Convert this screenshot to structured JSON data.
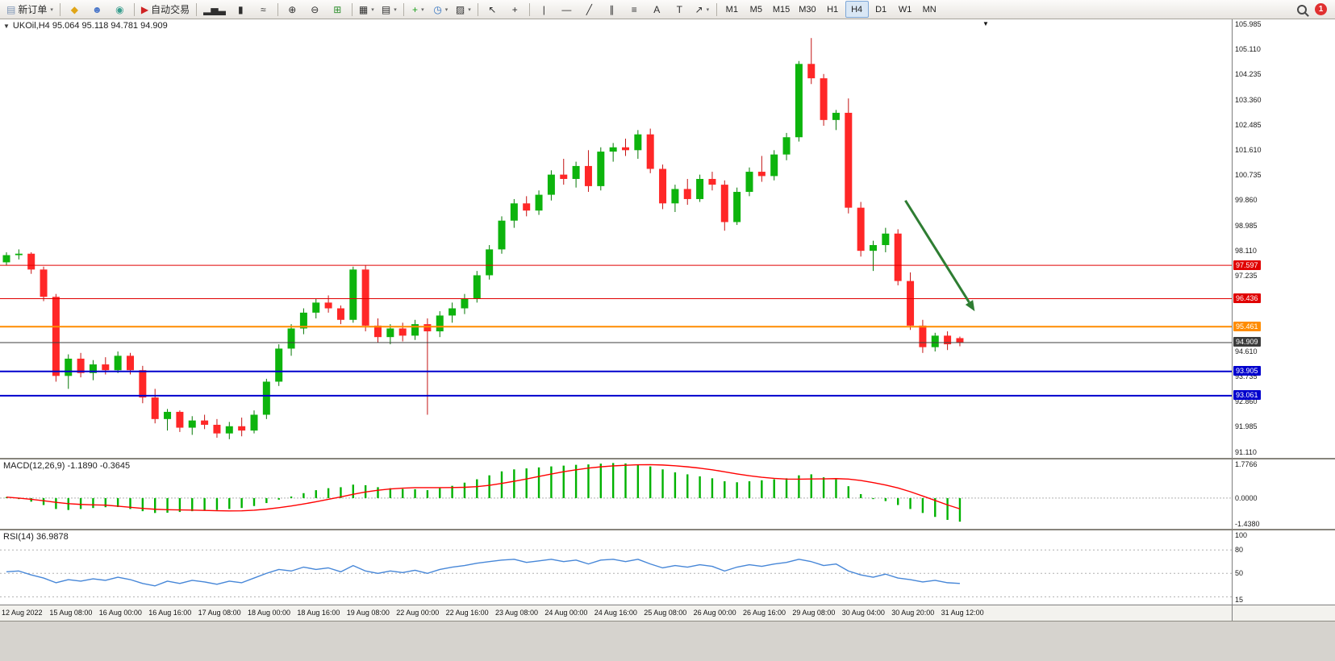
{
  "toolbar": {
    "items": [
      {
        "t": "btn",
        "name": "new-order-button",
        "icon": "new-order",
        "glyph": "▤",
        "glyph_color": "#7c93b5",
        "label": "新订单",
        "dropdown": true
      },
      {
        "t": "sep"
      },
      {
        "t": "btn",
        "name": "mql-community-button",
        "icon": "diamond",
        "glyph": "◆",
        "glyph_color": "#e0a517"
      },
      {
        "t": "btn",
        "name": "profile-button",
        "icon": "person",
        "glyph": "☻",
        "glyph_color": "#4a76c9"
      },
      {
        "t": "btn",
        "name": "market-watch-button",
        "icon": "globe",
        "glyph": "◉",
        "glyph_color": "#3a9e8f"
      },
      {
        "t": "sep"
      },
      {
        "t": "btn",
        "name": "auto-trading-button",
        "icon": "play",
        "glyph": "▶",
        "glyph_color": "#cf2323",
        "label": "自动交易"
      },
      {
        "t": "sep"
      },
      {
        "t": "btn",
        "name": "bar-chart-type-button",
        "icon": "ohlc-bars",
        "glyph": "▂▅▃"
      },
      {
        "t": "btn",
        "name": "candlestick-type-button",
        "icon": "candlestick",
        "glyph": "▮"
      },
      {
        "t": "btn",
        "name": "line-chart-type-button",
        "icon": "line-wave",
        "glyph": "≈"
      },
      {
        "t": "sep"
      },
      {
        "t": "btn",
        "name": "zoom-in-button",
        "icon": "zoom-in",
        "glyph": "⊕"
      },
      {
        "t": "btn",
        "name": "zoom-out-button",
        "icon": "zoom-out",
        "glyph": "⊖"
      },
      {
        "t": "btn",
        "name": "tile-windows-button",
        "icon": "tile-grid",
        "glyph": "⊞",
        "glyph_color": "#2d8f2d"
      },
      {
        "t": "sep"
      },
      {
        "t": "btn",
        "name": "arrange-windows-button",
        "icon": "arrange-grid",
        "glyph": "▦",
        "dropdown": true
      },
      {
        "t": "btn",
        "name": "profiles-list-button",
        "icon": "layout",
        "glyph": "▤",
        "dropdown": true
      },
      {
        "t": "sep"
      },
      {
        "t": "btn",
        "name": "add-indicator-button",
        "icon": "plus",
        "glyph": "+",
        "glyph_color": "#1da11d",
        "dropdown": true
      },
      {
        "t": "btn",
        "name": "periods-button",
        "icon": "clock",
        "glyph": "◷",
        "glyph_color": "#2d6fc0",
        "dropdown": true
      },
      {
        "t": "btn",
        "name": "templates-button",
        "icon": "template",
        "glyph": "▨",
        "dropdown": true
      },
      {
        "t": "sep"
      },
      {
        "t": "btn",
        "name": "cursor-button",
        "icon": "pointer-arrow",
        "glyph": "↖"
      },
      {
        "t": "btn",
        "name": "crosshair-button",
        "icon": "crosshair",
        "glyph": "+"
      },
      {
        "t": "sep"
      },
      {
        "t": "btn",
        "name": "vertical-line-button",
        "icon": "vertical-line",
        "glyph": "|"
      },
      {
        "t": "btn",
        "name": "horizontal-line-button",
        "icon": "horizontal-line",
        "glyph": "—"
      },
      {
        "t": "btn",
        "name": "trendline-button",
        "icon": "trendline",
        "glyph": "╱"
      },
      {
        "t": "btn",
        "name": "channel-button",
        "icon": "parallel-lines",
        "glyph": "∥"
      },
      {
        "t": "btn",
        "name": "fibonacci-button",
        "icon": "fibonacci",
        "glyph": "≡"
      },
      {
        "t": "btn",
        "name": "text-button",
        "icon": "letter-a",
        "glyph": "A"
      },
      {
        "t": "btn",
        "name": "text-label-button",
        "icon": "letter-t",
        "glyph": "T"
      },
      {
        "t": "btn",
        "name": "arrows-tool-button",
        "icon": "arrow-up-right",
        "glyph": "↗",
        "dropdown": true
      },
      {
        "t": "sep"
      },
      {
        "t": "btn",
        "tf": true,
        "name": "timeframe-m1-button",
        "label": "M1"
      },
      {
        "t": "btn",
        "tf": true,
        "name": "timeframe-m5-button",
        "label": "M5"
      },
      {
        "t": "btn",
        "tf": true,
        "name": "timeframe-m15-button",
        "label": "M15"
      },
      {
        "t": "btn",
        "tf": true,
        "name": "timeframe-m30-button",
        "label": "M30"
      },
      {
        "t": "btn",
        "tf": true,
        "name": "timeframe-h1-button",
        "label": "H1"
      },
      {
        "t": "btn",
        "tf": true,
        "name": "timeframe-h4-button",
        "label": "H4",
        "active": true
      },
      {
        "t": "btn",
        "tf": true,
        "name": "timeframe-d1-button",
        "label": "D1"
      },
      {
        "t": "btn",
        "tf": true,
        "name": "timeframe-w1-button",
        "label": "W1"
      },
      {
        "t": "btn",
        "tf": true,
        "name": "timeframe-mn-button",
        "label": "MN"
      },
      {
        "t": "spacer"
      },
      {
        "t": "btn",
        "name": "search-button",
        "icon": "magnifier"
      },
      {
        "t": "badge",
        "name": "notification-badge",
        "label": "1"
      }
    ]
  },
  "chart": {
    "collapse_glyph": "▼",
    "shift_marker_glyph": "▼",
    "title": "UKOil,H4 95.064 95.118 94.781 94.909",
    "symbol": "UKOil",
    "period": "H4",
    "ohlc": {
      "open": "95.064",
      "high": "95.118",
      "low": "94.781",
      "close": "94.909"
    },
    "price_axis_labels": [
      "105.985",
      "105.110",
      "104.235",
      "103.360",
      "102.485",
      "101.610",
      "100.735",
      "99.860",
      "98.985",
      "98.110",
      "97.235",
      "96.360",
      "95.485",
      "94.610",
      "93.735",
      "92.860",
      "91.985",
      "91.110"
    ],
    "time_axis_labels": [
      "12 Aug 2022",
      "15 Aug 08:00",
      "16 Aug 00:00",
      "16 Aug 16:00",
      "17 Aug 08:00",
      "18 Aug 00:00",
      "18 Aug 16:00",
      "19 Aug 08:00",
      "22 Aug 00:00",
      "22 Aug 16:00",
      "23 Aug 08:00",
      "24 Aug 00:00",
      "24 Aug 16:00",
      "25 Aug 08:00",
      "26 Aug 00:00",
      "26 Aug 16:00",
      "29 Aug 08:00",
      "30 Aug 04:00",
      "30 Aug 20:00",
      "31 Aug 12:00"
    ]
  },
  "macd": {
    "header": "MACD(12,26,9) -1.1890 -0.3645",
    "axis_labels": [
      "1.7766",
      "0.0000",
      "-1.4380"
    ]
  },
  "rsi": {
    "header": "RSI(14) 36.9878",
    "axis_labels": [
      "100",
      "80",
      "50",
      "15"
    ]
  },
  "colors": {
    "bull": "#0db40d",
    "bear": "#ff2727",
    "bull_wick": "#067806",
    "bear_wick": "#c31414",
    "macd_histogram": "#00b200",
    "macd_signal": "#ff0000",
    "rsi_line": "#4787d8",
    "level_dotted": "#b0b0b0",
    "axis_text": "#1a1a1a"
  },
  "chart_data": {
    "type": "candlestick",
    "symbol": "UKOil",
    "timeframe": "H4",
    "price_range": [
      90.9,
      106.15
    ],
    "candles": [
      [
        97.7,
        98.05,
        97.6,
        97.95
      ],
      [
        97.95,
        98.15,
        97.8,
        98.0
      ],
      [
        98.0,
        98.05,
        97.3,
        97.45
      ],
      [
        97.45,
        97.55,
        96.35,
        96.5
      ],
      [
        96.5,
        96.6,
        93.55,
        93.75
      ],
      [
        93.75,
        94.5,
        93.3,
        94.35
      ],
      [
        94.35,
        94.55,
        93.7,
        93.85
      ],
      [
        93.85,
        94.3,
        93.6,
        94.15
      ],
      [
        94.15,
        94.4,
        93.8,
        93.95
      ],
      [
        93.95,
        94.6,
        93.85,
        94.45
      ],
      [
        94.45,
        94.55,
        93.8,
        93.95
      ],
      [
        93.95,
        94.1,
        92.8,
        93.0
      ],
      [
        93.0,
        93.3,
        92.1,
        92.25
      ],
      [
        92.25,
        92.6,
        91.85,
        92.5
      ],
      [
        92.5,
        92.55,
        91.8,
        91.95
      ],
      [
        91.95,
        92.35,
        91.7,
        92.2
      ],
      [
        92.2,
        92.4,
        91.9,
        92.05
      ],
      [
        92.05,
        92.25,
        91.6,
        91.75
      ],
      [
        91.75,
        92.15,
        91.55,
        92.0
      ],
      [
        92.0,
        92.3,
        91.65,
        91.85
      ],
      [
        91.85,
        92.55,
        91.75,
        92.4
      ],
      [
        92.4,
        93.65,
        92.25,
        93.55
      ],
      [
        93.55,
        94.85,
        93.4,
        94.7
      ],
      [
        94.7,
        95.55,
        94.45,
        95.4
      ],
      [
        95.4,
        96.1,
        95.2,
        95.95
      ],
      [
        95.95,
        96.45,
        95.75,
        96.3
      ],
      [
        96.3,
        96.55,
        95.95,
        96.1
      ],
      [
        96.1,
        96.2,
        95.55,
        95.7
      ],
      [
        95.7,
        97.55,
        95.6,
        97.45
      ],
      [
        97.45,
        97.6,
        95.3,
        95.5
      ],
      [
        95.5,
        95.75,
        94.9,
        95.1
      ],
      [
        95.1,
        95.55,
        94.85,
        95.4
      ],
      [
        95.4,
        95.6,
        94.95,
        95.15
      ],
      [
        95.15,
        95.7,
        95.0,
        95.55
      ],
      [
        95.55,
        95.75,
        92.4,
        95.3
      ],
      [
        95.3,
        96.0,
        95.1,
        95.85
      ],
      [
        95.85,
        96.3,
        95.6,
        96.1
      ],
      [
        96.1,
        96.6,
        95.9,
        96.45
      ],
      [
        96.45,
        97.4,
        96.3,
        97.25
      ],
      [
        97.25,
        98.3,
        97.1,
        98.15
      ],
      [
        98.15,
        99.3,
        98.0,
        99.15
      ],
      [
        99.15,
        99.9,
        98.9,
        99.75
      ],
      [
        99.75,
        100.0,
        99.3,
        99.5
      ],
      [
        99.5,
        100.2,
        99.35,
        100.05
      ],
      [
        100.05,
        100.9,
        99.85,
        100.75
      ],
      [
        100.75,
        101.3,
        100.4,
        100.6
      ],
      [
        100.6,
        101.2,
        100.3,
        101.05
      ],
      [
        101.05,
        101.6,
        100.15,
        100.35
      ],
      [
        100.35,
        101.7,
        100.2,
        101.55
      ],
      [
        101.55,
        101.85,
        101.2,
        101.7
      ],
      [
        101.7,
        102.0,
        101.4,
        101.6
      ],
      [
        101.6,
        102.3,
        101.3,
        102.15
      ],
      [
        102.15,
        102.35,
        100.8,
        100.95
      ],
      [
        100.95,
        101.1,
        99.55,
        99.75
      ],
      [
        99.75,
        100.4,
        99.45,
        100.25
      ],
      [
        100.25,
        100.6,
        99.7,
        99.9
      ],
      [
        99.9,
        100.75,
        99.8,
        100.6
      ],
      [
        100.6,
        100.85,
        100.2,
        100.4
      ],
      [
        100.4,
        100.55,
        98.8,
        99.1
      ],
      [
        99.1,
        100.3,
        99.0,
        100.15
      ],
      [
        100.15,
        101.0,
        100.0,
        100.85
      ],
      [
        100.85,
        101.4,
        100.5,
        100.7
      ],
      [
        100.7,
        101.6,
        100.55,
        101.45
      ],
      [
        101.45,
        102.2,
        101.25,
        102.05
      ],
      [
        102.05,
        104.7,
        101.9,
        104.6
      ],
      [
        104.6,
        105.5,
        103.9,
        104.1
      ],
      [
        104.1,
        104.25,
        102.45,
        102.65
      ],
      [
        102.65,
        103.0,
        102.3,
        102.9
      ],
      [
        102.9,
        103.4,
        99.4,
        99.6
      ],
      [
        99.6,
        99.8,
        97.9,
        98.1
      ],
      [
        98.1,
        98.45,
        97.4,
        98.3
      ],
      [
        98.3,
        98.9,
        98.05,
        98.7
      ],
      [
        98.7,
        98.85,
        96.9,
        97.05
      ],
      [
        97.05,
        97.35,
        95.35,
        95.5
      ],
      [
        95.5,
        95.7,
        94.55,
        94.75
      ],
      [
        94.75,
        95.25,
        94.6,
        95.15
      ],
      [
        95.15,
        95.3,
        94.65,
        94.85
      ],
      [
        95.064,
        95.118,
        94.781,
        94.909
      ]
    ],
    "hlines": [
      {
        "price": 97.597,
        "label": "97.597",
        "color": "#e00000",
        "thick": 1
      },
      {
        "price": 96.436,
        "label": "96.436",
        "color": "#e00000",
        "thick": 1
      },
      {
        "price": 95.461,
        "label": "95.461",
        "color": "#ff8c00",
        "thick": 2
      },
      {
        "price": 94.909,
        "label": "94.909",
        "color": "#3c3c3c",
        "thick": 1
      },
      {
        "price": 93.905,
        "label": "93.905",
        "color": "#0000cd",
        "thick": 2
      },
      {
        "price": 93.061,
        "label": "93.061",
        "color": "#0000cd",
        "thick": 2
      }
    ],
    "indicators": {
      "macd": {
        "name": "MACD(12,26,9)",
        "last_macd": -1.189,
        "last_signal": -0.3645,
        "pane_range": [
          -1.55,
          1.95
        ],
        "histogram": [
          0.05,
          -0.05,
          -0.18,
          -0.35,
          -0.55,
          -0.6,
          -0.55,
          -0.5,
          -0.46,
          -0.45,
          -0.55,
          -0.66,
          -0.75,
          -0.74,
          -0.7,
          -0.66,
          -0.62,
          -0.6,
          -0.55,
          -0.5,
          -0.4,
          -0.25,
          -0.08,
          0.08,
          0.25,
          0.4,
          0.5,
          0.55,
          0.68,
          0.65,
          0.55,
          0.5,
          0.46,
          0.45,
          0.4,
          0.5,
          0.62,
          0.78,
          0.95,
          1.15,
          1.35,
          1.45,
          1.5,
          1.55,
          1.6,
          1.64,
          1.68,
          1.7,
          1.74,
          1.77,
          1.75,
          1.7,
          1.6,
          1.45,
          1.3,
          1.2,
          1.1,
          1.0,
          0.85,
          0.8,
          0.85,
          0.9,
          0.95,
          1.0,
          1.15,
          1.2,
          1.05,
          0.95,
          0.6,
          0.2,
          -0.05,
          -0.15,
          -0.35,
          -0.55,
          -0.75,
          -0.95,
          -1.1,
          -1.19
        ]
      },
      "rsi": {
        "name": "RSI(14)",
        "last": 36.9878,
        "levels": [
          80,
          50,
          20
        ],
        "pane_range": [
          10,
          105
        ],
        "values": [
          52,
          53,
          48,
          44,
          38,
          42,
          40,
          43,
          41,
          45,
          42,
          37,
          34,
          40,
          37,
          41,
          39,
          36,
          40,
          38,
          44,
          50,
          55,
          53,
          58,
          55,
          57,
          52,
          60,
          53,
          50,
          53,
          51,
          54,
          50,
          55,
          58,
          60,
          63,
          65,
          67,
          68,
          64,
          66,
          68,
          65,
          67,
          62,
          67,
          68,
          65,
          68,
          62,
          57,
          60,
          58,
          61,
          59,
          53,
          58,
          61,
          59,
          62,
          64,
          68,
          65,
          60,
          62,
          53,
          48,
          45,
          49,
          44,
          42,
          39,
          41,
          38,
          37
        ]
      }
    },
    "annotation_arrow": {
      "from_index": 72.6,
      "from_price": 99.85,
      "to_index": 78.2,
      "to_price": 96.0,
      "color": "#2e7d32"
    }
  }
}
